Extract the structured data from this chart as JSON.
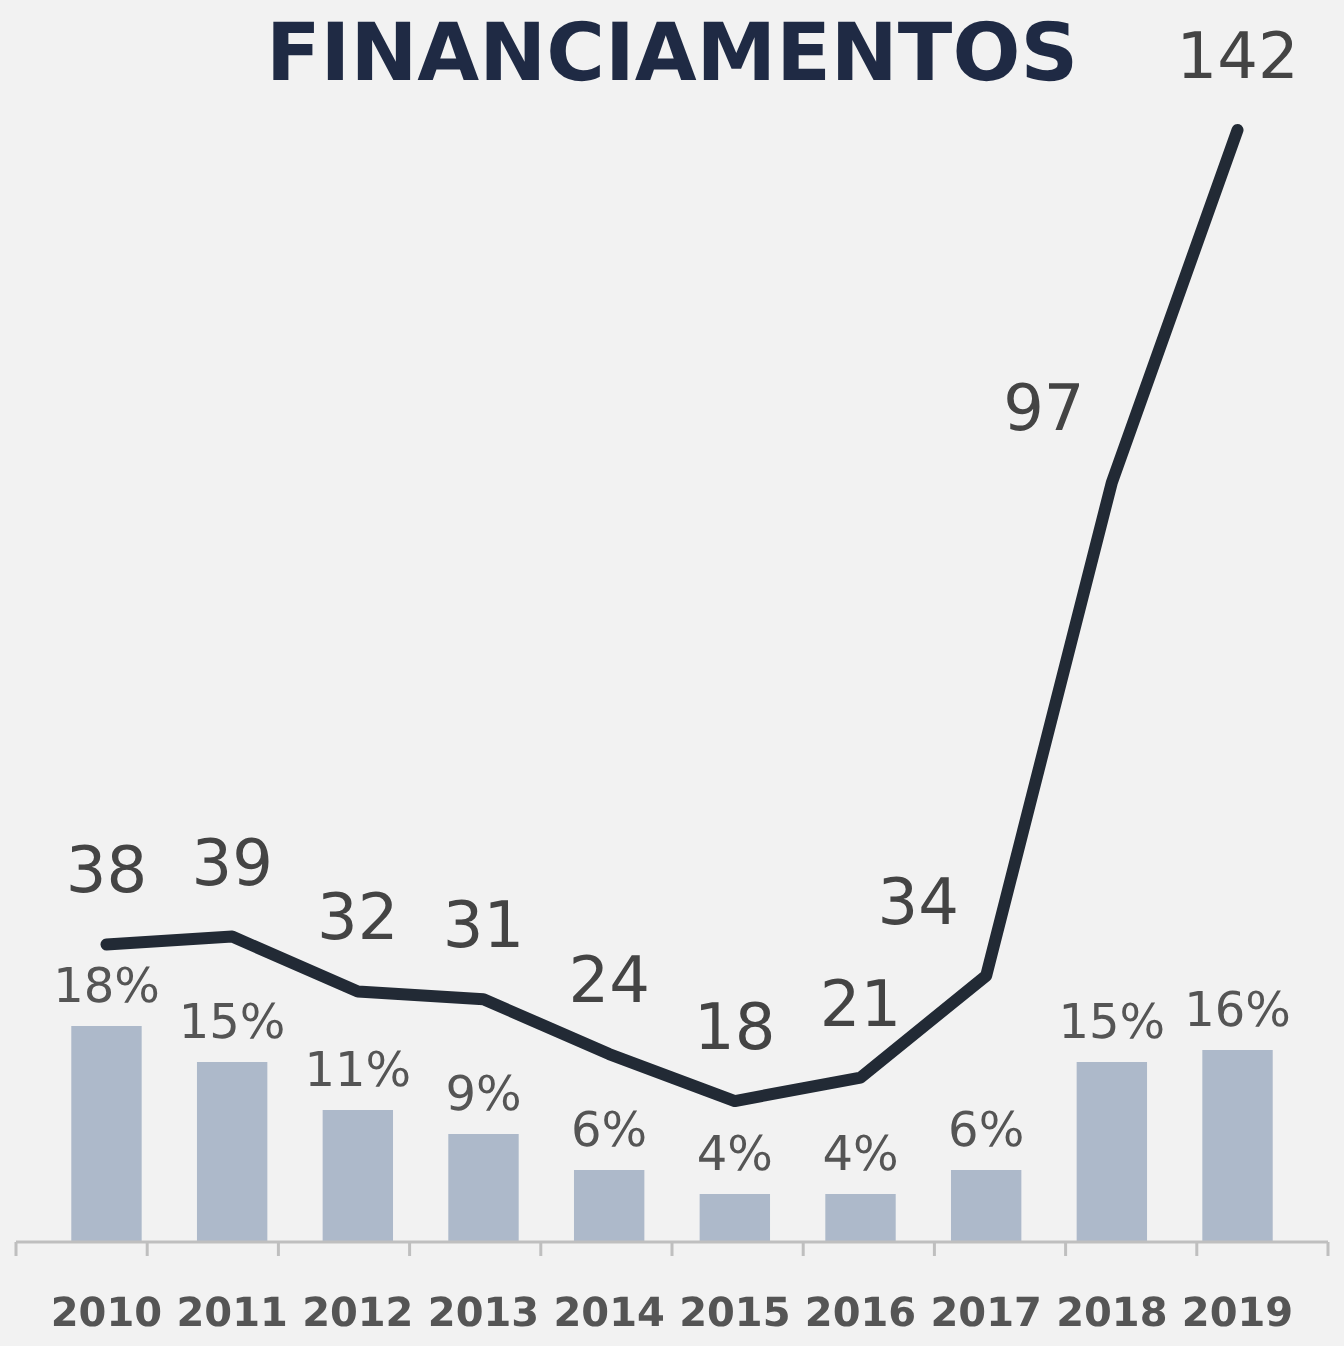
{
  "chart_data": {
    "type": "bar",
    "title": "FINANCIAMENTOS",
    "categories": [
      "2010",
      "2011",
      "2012",
      "2013",
      "2014",
      "2015",
      "2016",
      "2017",
      "2018",
      "2019"
    ],
    "series": [
      {
        "color": "#adb9ca",
        "values": [
          18,
          15,
          11,
          9,
          6,
          4,
          4,
          6,
          15,
          16
        ],
        "value_labels": [
          "18%",
          "15%",
          "11%",
          "9%",
          "6%",
          "4%",
          "4%",
          "6%",
          "15%",
          "16%"
        ]
      },
      {
        "type": "line",
        "axis": "y2",
        "color": "#222a35",
        "values": [
          38,
          39,
          32,
          31,
          24,
          18,
          21,
          34,
          97,
          142
        ],
        "value_labels": [
          "38",
          "39",
          "32",
          "31",
          "24",
          "18",
          "21",
          "34",
          "97",
          "142"
        ]
      }
    ],
    "tick_labels": "x",
    "marker": "none",
    "line_style": "solid"
  }
}
